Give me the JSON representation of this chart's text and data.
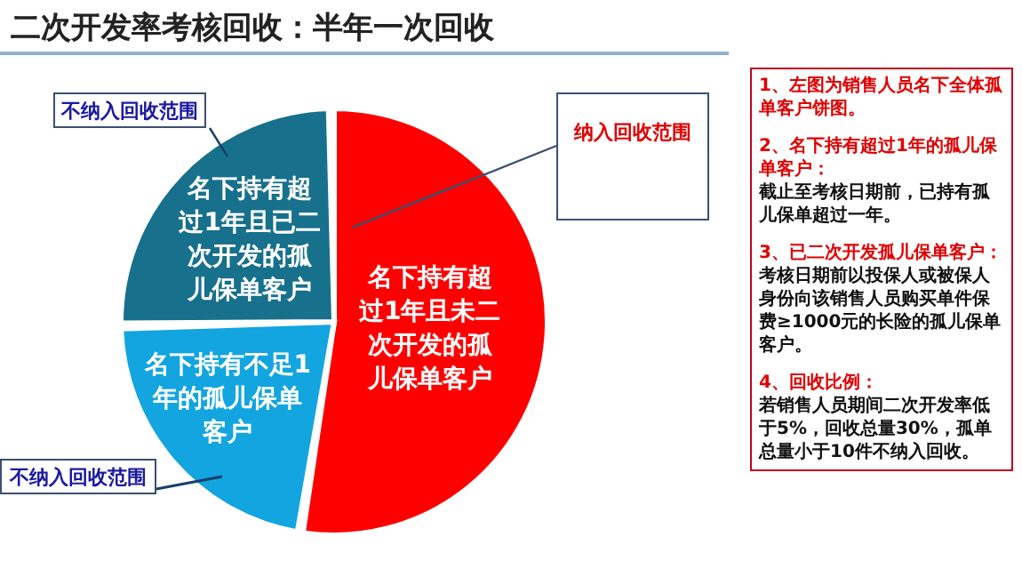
{
  "chart_data": {
    "type": "pie",
    "title": "二次开发率考核回收：半年一次回收",
    "categories": [
      "名下持有超过1年且未二次开发的孤儿保单客户",
      "名下持有不足1年的孤儿保单客户",
      "名下持有超过1年且已二次开发的孤儿保单客户"
    ],
    "values": [
      53,
      22,
      25
    ],
    "colors": [
      "#ff0000",
      "#12a5e0",
      "#17708c"
    ],
    "annotations": [
      "纳入回收范围",
      "不纳入回收范围",
      "不纳入回收范围",
      "1、左图为销售人员名下全体孤单客户饼图。",
      "2、名下持有超过1年的孤儿保单客户：",
      "截止至考核日期前，已持有孤儿保单超过一年。",
      "3、已二次开发孤儿保单客户：",
      "考核日期前以投保人或被保人身份向该销售人员购买单件保费≥1000元的长险的孤儿保单客户。",
      "4、回收比例：",
      "若销售人员期间二次开发率低于5%，回收总量30%，孤单总量小于10件不纳入回收。"
    ]
  }
}
